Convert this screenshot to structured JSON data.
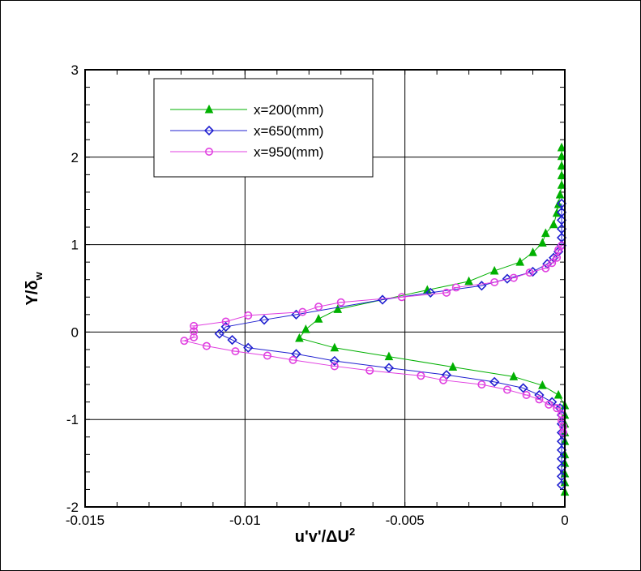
{
  "chart_data": {
    "type": "line",
    "title": "",
    "xlabel": "u'v'/ΔU²",
    "xlabel_parts": {
      "main": "u'v'/ΔU",
      "sup": "2"
    },
    "ylabel": "Y/δw",
    "ylabel_parts": {
      "main": "Y/δ",
      "sub": "w"
    },
    "xlim": [
      -0.015,
      0
    ],
    "ylim": [
      -2,
      3
    ],
    "x_ticks": [
      -0.015,
      -0.01,
      -0.005,
      0
    ],
    "x_tick_labels": [
      "-0.015",
      "-0.01",
      "-0.005",
      "0"
    ],
    "y_ticks": [
      -2,
      -1,
      0,
      1,
      2,
      3
    ],
    "y_tick_labels": [
      "-2",
      "-1",
      "0",
      "1",
      "2",
      "3"
    ],
    "grid": true,
    "legend_position": "top-left",
    "series": [
      {
        "name": "x=200(mm)",
        "color": "#00b000",
        "marker": "triangle-filled",
        "x": [
          -0.0001,
          -0.0001,
          -0.0001,
          -0.0001,
          -0.0001,
          -0.00015,
          -0.0002,
          -0.00025,
          -0.00035,
          -0.0006,
          -0.0007,
          -0.001,
          -0.0014,
          -0.0022,
          -0.003,
          -0.0043,
          -0.0071,
          -0.0077,
          -0.0081,
          -0.0083,
          -0.0072,
          -0.0055,
          -0.0035,
          -0.0016,
          -0.0007,
          -0.0002,
          0,
          0,
          0,
          0,
          0,
          0,
          0,
          0,
          0,
          0
        ],
        "y": [
          2.11,
          2.01,
          1.9,
          1.79,
          1.68,
          1.57,
          1.46,
          1.36,
          1.23,
          1.13,
          1.02,
          0.91,
          0.8,
          0.7,
          0.58,
          0.48,
          0.26,
          0.15,
          0.03,
          -0.07,
          -0.18,
          -0.28,
          -0.4,
          -0.51,
          -0.61,
          -0.72,
          -0.84,
          -0.95,
          -1.05,
          -1.15,
          -1.25,
          -1.4,
          -1.5,
          -1.62,
          -1.72,
          -1.83
        ]
      },
      {
        "name": "x=650(mm)",
        "color": "#2020d0",
        "marker": "diamond-open",
        "x": [
          -0.0001,
          -0.0001,
          -0.0001,
          -0.0001,
          -0.0001,
          -0.0001,
          -0.0002,
          -0.00035,
          -0.00055,
          -0.001,
          -0.0018,
          -0.0026,
          -0.0042,
          -0.0057,
          -0.0084,
          -0.0094,
          -0.0106,
          -0.0108,
          -0.0104,
          -0.0099,
          -0.0084,
          -0.0072,
          -0.0055,
          -0.0037,
          -0.0022,
          -0.0013,
          -0.0008,
          -0.0004,
          -0.00015,
          -0.0001,
          -0.0001,
          -0.0001,
          -0.0001,
          -0.0001,
          -0.0001,
          -0.0001,
          -0.0001,
          -0.0001
        ],
        "y": [
          1.47,
          1.37,
          1.28,
          1.18,
          1.08,
          0.99,
          0.92,
          0.85,
          0.78,
          0.69,
          0.61,
          0.53,
          0.45,
          0.37,
          0.2,
          0.14,
          0.06,
          -0.02,
          -0.09,
          -0.18,
          -0.25,
          -0.33,
          -0.41,
          -0.49,
          -0.57,
          -0.64,
          -0.72,
          -0.8,
          -0.87,
          -0.95,
          -1.05,
          -1.15,
          -1.25,
          -1.35,
          -1.45,
          -1.55,
          -1.65,
          -1.75
        ]
      },
      {
        "name": "x=950(mm)",
        "color": "#e040e0",
        "marker": "circle-open",
        "x": [
          -0.0001,
          -0.0002,
          -0.00025,
          -0.0004,
          -0.0006,
          -0.0011,
          -0.0016,
          -0.0022,
          -0.0034,
          -0.0037,
          -0.0051,
          -0.007,
          -0.0077,
          -0.0082,
          -0.0099,
          -0.0106,
          -0.0116,
          -0.0116,
          -0.0116,
          -0.0119,
          -0.0112,
          -0.0103,
          -0.0093,
          -0.0085,
          -0.0072,
          -0.0061,
          -0.0045,
          -0.0038,
          -0.0026,
          -0.0018,
          -0.0012,
          -0.0008,
          -0.0005,
          -0.00025,
          -0.0001,
          -0.0001,
          -5e-05,
          -5e-05
        ],
        "y": [
          0.99,
          0.94,
          0.85,
          0.79,
          0.73,
          0.68,
          0.62,
          0.57,
          0.51,
          0.45,
          0.4,
          0.34,
          0.29,
          0.23,
          0.19,
          0.12,
          0.07,
          0.01,
          -0.06,
          -0.1,
          -0.16,
          -0.22,
          -0.27,
          -0.32,
          -0.39,
          -0.44,
          -0.5,
          -0.55,
          -0.6,
          -0.66,
          -0.72,
          -0.77,
          -0.83,
          -0.87,
          -0.94,
          -1.01,
          -1.08,
          -1.15
        ]
      }
    ]
  }
}
